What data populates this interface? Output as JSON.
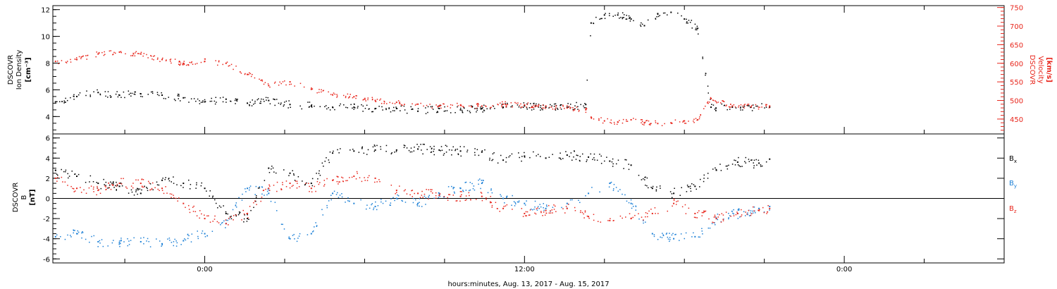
{
  "xlabel": "hours:minutes, Aug. 13, 2017 - Aug. 15, 2017",
  "x_ticks": [
    "0:00",
    "12:00",
    "0:00"
  ],
  "x_range_hours": [
    -5.7,
    30
  ],
  "top_panel": {
    "left_axis_label": [
      "DSCOVR",
      "Ion Density",
      "[cm⁻³]"
    ],
    "right_axis_label": [
      "DSCOVR",
      "Velocity",
      "[km/s]"
    ],
    "left_ticks": [
      "4",
      "6",
      "8",
      "10",
      "12"
    ],
    "right_ticks": [
      "450",
      "500",
      "550",
      "600",
      "650",
      "700",
      "750"
    ]
  },
  "bottom_panel": {
    "left_axis_label": [
      "DSCOVR",
      "B",
      "[nT]"
    ],
    "ticks": [
      "-6",
      "-4",
      "-2",
      "0",
      "2",
      "4",
      "6"
    ],
    "legend": [
      {
        "text": "B",
        "sub": "x",
        "color": "#000000"
      },
      {
        "text": "B",
        "sub": "y",
        "color": "#1a7fd6"
      },
      {
        "text": "B",
        "sub": "z",
        "color": "#e8261c"
      }
    ]
  },
  "colors": {
    "density": "#000000",
    "velocity": "#e8261c",
    "bx": "#000000",
    "by": "#1a7fd6",
    "bz": "#e8261c"
  },
  "chart_data": [
    {
      "type": "scatter",
      "title": "",
      "xlabel": "hours:minutes, Aug. 13, 2017 - Aug. 15, 2017",
      "ylabel": "DSCOVR Ion Density [cm⁻³]",
      "ylim": [
        2.7,
        12.3
      ],
      "x_unit": "hours from Aug. 14, 2017 0:00",
      "series": [
        {
          "name": "Ion Density",
          "color": "#000000",
          "axis": "left",
          "x": [
            -5.6,
            -4.8,
            -4.0,
            -3.2,
            -2.4,
            -1.6,
            -0.8,
            0.0,
            0.8,
            1.6,
            2.4,
            3.2,
            4.0,
            4.8,
            5.6,
            6.4,
            7.2,
            8.0,
            8.8,
            9.6,
            10.4,
            11.2,
            12.0,
            12.8,
            13.6,
            14.3,
            14.5,
            15.0,
            15.5,
            16.0,
            16.5,
            17.0,
            17.5,
            18.0,
            18.5,
            19.0,
            19.8,
            20.5,
            21.2
          ],
          "y": [
            5.1,
            5.5,
            5.8,
            5.6,
            5.7,
            5.6,
            5.4,
            5.1,
            5.3,
            5.0,
            5.2,
            4.9,
            4.8,
            4.7,
            4.7,
            4.6,
            4.6,
            4.4,
            4.6,
            4.5,
            4.6,
            4.7,
            4.8,
            4.7,
            4.7,
            4.9,
            11.0,
            11.6,
            11.6,
            11.3,
            10.8,
            11.7,
            11.8,
            11.3,
            10.6,
            4.7,
            4.7,
            4.7,
            4.7
          ]
        },
        {
          "name": "Velocity",
          "color": "#e8261c",
          "axis": "right",
          "ylim": [
            410,
            755
          ],
          "x": [
            -5.6,
            -4.8,
            -4.0,
            -3.2,
            -2.4,
            -1.6,
            -0.8,
            0.0,
            0.8,
            1.6,
            2.4,
            3.2,
            4.0,
            4.8,
            5.6,
            6.4,
            7.2,
            8.0,
            8.8,
            9.6,
            10.4,
            11.2,
            12.0,
            12.8,
            13.6,
            14.3,
            14.5,
            15.0,
            15.5,
            16.0,
            16.5,
            17.0,
            17.5,
            18.0,
            18.5,
            19.0,
            19.8,
            20.5,
            21.2
          ],
          "y": [
            605,
            610,
            625,
            630,
            625,
            610,
            600,
            605,
            600,
            570,
            540,
            550,
            530,
            515,
            510,
            500,
            495,
            490,
            485,
            487,
            485,
            490,
            488,
            485,
            480,
            475,
            455,
            445,
            442,
            448,
            440,
            438,
            440,
            445,
            448,
            505,
            485,
            483,
            485
          ]
        }
      ]
    },
    {
      "type": "scatter",
      "title": "",
      "xlabel": "hours:minutes, Aug. 13, 2017 - Aug. 15, 2017",
      "ylabel": "DSCOVR B [nT]",
      "ylim": [
        -6.4,
        6.4
      ],
      "x_unit": "hours from Aug. 14, 2017 0:00",
      "series": [
        {
          "name": "Bx",
          "color": "#000000",
          "x": [
            -5.6,
            -4.8,
            -4.0,
            -3.2,
            -2.4,
            -1.6,
            -0.8,
            0.0,
            0.8,
            1.6,
            2.4,
            3.2,
            4.0,
            4.8,
            5.6,
            6.4,
            7.2,
            8.0,
            8.8,
            9.6,
            10.4,
            11.2,
            12.0,
            12.8,
            13.6,
            14.4,
            15.2,
            16.0,
            16.8,
            17.6,
            18.4,
            19.2,
            20.0,
            20.8,
            21.2
          ],
          "y": [
            2.8,
            2.2,
            1.5,
            1.2,
            0.5,
            1.8,
            1.5,
            1.0,
            -1.5,
            -2.0,
            3.0,
            2.5,
            1.5,
            4.5,
            4.7,
            4.8,
            4.8,
            4.9,
            4.8,
            4.7,
            4.6,
            3.8,
            4.2,
            4.0,
            4.3,
            4.1,
            3.7,
            3.3,
            1.0,
            0.5,
            1.2,
            2.8,
            3.6,
            3.5,
            3.9
          ]
        },
        {
          "name": "By",
          "color": "#1a7fd6",
          "x": [
            -5.6,
            -4.8,
            -4.0,
            -3.2,
            -2.4,
            -1.6,
            -0.8,
            0.0,
            0.8,
            1.6,
            2.4,
            3.2,
            4.0,
            4.8,
            5.6,
            6.4,
            7.2,
            8.0,
            8.8,
            9.6,
            10.4,
            11.2,
            12.0,
            12.8,
            13.6,
            14.4,
            15.2,
            16.0,
            16.8,
            17.6,
            18.4,
            19.2,
            20.0,
            20.8,
            21.2
          ],
          "y": [
            -3.8,
            -3.5,
            -4.3,
            -4.4,
            -4.3,
            -4.5,
            -4.2,
            -3.5,
            -2.5,
            1.0,
            0.5,
            -4.0,
            -3.5,
            0.5,
            -0.5,
            -0.8,
            0.0,
            -0.5,
            0.5,
            1.0,
            1.5,
            0.0,
            -0.5,
            -1.0,
            -0.5,
            0.5,
            1.5,
            -0.5,
            -3.5,
            -4.0,
            -3.8,
            -2.0,
            -1.5,
            -1.0,
            -0.8
          ]
        },
        {
          "name": "Bz",
          "color": "#e8261c",
          "x": [
            -5.6,
            -4.8,
            -4.0,
            -3.2,
            -2.4,
            -1.6,
            -0.8,
            0.0,
            0.8,
            1.6,
            2.4,
            3.2,
            4.0,
            4.8,
            5.6,
            6.4,
            7.2,
            8.0,
            8.8,
            9.6,
            10.4,
            11.2,
            12.0,
            12.8,
            13.6,
            14.4,
            15.2,
            16.0,
            16.8,
            17.6,
            18.4,
            19.2,
            20.0,
            20.8,
            21.2
          ],
          "y": [
            2.0,
            1.0,
            0.8,
            1.5,
            1.5,
            1.0,
            -0.5,
            -2.0,
            -2.5,
            -1.5,
            1.0,
            1.5,
            1.0,
            1.8,
            2.2,
            2.0,
            0.8,
            0.5,
            0.3,
            0.2,
            0.2,
            -1.0,
            -1.5,
            -1.2,
            -1.0,
            -1.8,
            -2.2,
            -2.0,
            -1.5,
            -0.5,
            -1.5,
            -2.0,
            -1.5,
            -1.2,
            -1.0
          ]
        }
      ]
    }
  ]
}
